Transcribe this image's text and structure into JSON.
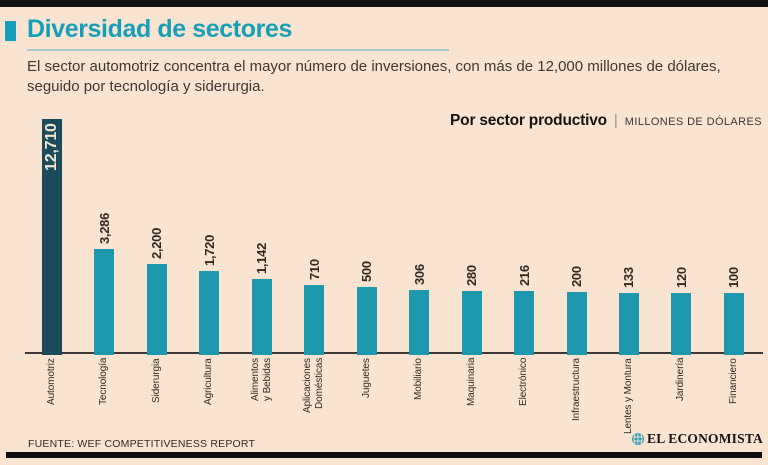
{
  "header": {
    "title": "Diversidad de sectores",
    "subtitle": "El sector automotriz concentra el mayor número de inversiones, con más de 12,000 millones de dólares, seguido por tecnología y siderurgia."
  },
  "chart_header": {
    "title": "Por sector productivo",
    "separator": "|",
    "units": "MILLONES DE DÓLARES"
  },
  "chart_data": {
    "type": "bar",
    "title": "Por sector productivo",
    "units": "MILLONES DE DÓLARES",
    "categories": [
      "Automotriz",
      "Tecnología",
      "Siderurgia",
      "Agricultura",
      "Alimentos\ny Bebidas",
      "Aplicaciones\nDomésticas",
      "Juguetes",
      "Mobiliario",
      "Maquinaria",
      "Electrónico",
      "Infraestructura",
      "Lentes y Montura",
      "Jardinería",
      "Financiero"
    ],
    "values": [
      12710,
      3286,
      2200,
      1720,
      1142,
      710,
      500,
      306,
      280,
      216,
      200,
      133,
      120,
      100
    ],
    "value_labels": [
      "12,710",
      "3,286",
      "2,200",
      "1,720",
      "1,142",
      "710",
      "500",
      "306",
      "280",
      "216",
      "200",
      "133",
      "120",
      "100"
    ],
    "highlight_index": 0,
    "orientation": "vertical-bars, rotated value labels above bars, rotated category labels below axis",
    "gridlines": false,
    "colors": {
      "bar": "#1e98ae",
      "bar_highlight": "#1c4c5c",
      "value_label": "#33291f",
      "value_label_highlight": "#f4e6d4"
    }
  },
  "footer": {
    "source": "FUENTE: WEF COMPETITIVENESS REPORT",
    "brand": "EL ECONOMISTA"
  },
  "colors": {
    "accent_teal": "#179fb9",
    "background": "#f9e4d1",
    "bar_teal": "#1e98ae",
    "bar_dark_teal": "#1c4c5c"
  }
}
